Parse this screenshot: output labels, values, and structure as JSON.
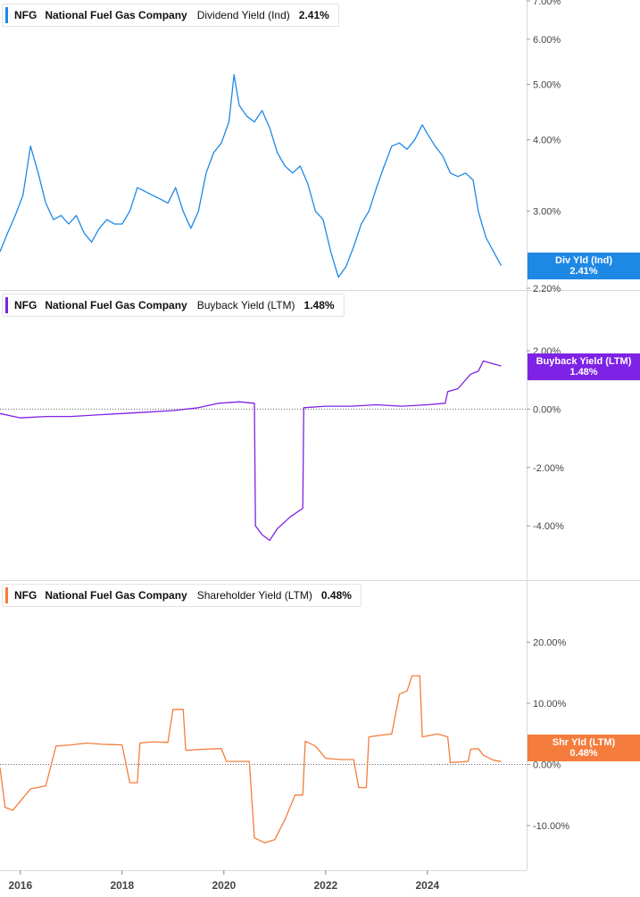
{
  "chart_data": [
    {
      "type": "line",
      "ticker": "NFG",
      "company": "National Fuel Gas Company",
      "metric": "Dividend Yield (Ind)",
      "current_value": "2.41%",
      "tag_label": "Div Yld (Ind)",
      "color": "#1e88e5",
      "y_axis_scale": "log",
      "y_range": [
        2.2,
        7.0
      ],
      "y_ticks": [
        {
          "v": 7.0,
          "label": "7.00%"
        },
        {
          "v": 6.0,
          "label": "6.00%"
        },
        {
          "v": 5.0,
          "label": "5.00%"
        },
        {
          "v": 4.0,
          "label": "4.00%"
        },
        {
          "v": 3.0,
          "label": "3.00%"
        },
        {
          "v": 2.2,
          "label": "2.20%"
        }
      ],
      "zero_line": false,
      "series": [
        {
          "points": [
            [
              2015.6,
              2.55
            ],
            [
              2015.75,
              2.75
            ],
            [
              2015.9,
              2.95
            ],
            [
              2016.05,
              3.2
            ],
            [
              2016.2,
              3.9
            ],
            [
              2016.35,
              3.5
            ],
            [
              2016.5,
              3.1
            ],
            [
              2016.65,
              2.9
            ],
            [
              2016.8,
              2.95
            ],
            [
              2016.95,
              2.85
            ],
            [
              2017.1,
              2.95
            ],
            [
              2017.25,
              2.75
            ],
            [
              2017.4,
              2.65
            ],
            [
              2017.55,
              2.8
            ],
            [
              2017.7,
              2.9
            ],
            [
              2017.85,
              2.85
            ],
            [
              2018.0,
              2.85
            ],
            [
              2018.15,
              3.0
            ],
            [
              2018.3,
              3.3
            ],
            [
              2018.45,
              3.25
            ],
            [
              2018.6,
              3.2
            ],
            [
              2018.75,
              3.15
            ],
            [
              2018.9,
              3.1
            ],
            [
              2019.05,
              3.3
            ],
            [
              2019.2,
              3.0
            ],
            [
              2019.35,
              2.8
            ],
            [
              2019.5,
              3.0
            ],
            [
              2019.65,
              3.5
            ],
            [
              2019.8,
              3.8
            ],
            [
              2019.95,
              3.95
            ],
            [
              2020.1,
              4.3
            ],
            [
              2020.2,
              5.2
            ],
            [
              2020.3,
              4.6
            ],
            [
              2020.45,
              4.4
            ],
            [
              2020.6,
              4.3
            ],
            [
              2020.75,
              4.5
            ],
            [
              2020.9,
              4.2
            ],
            [
              2021.05,
              3.8
            ],
            [
              2021.2,
              3.6
            ],
            [
              2021.35,
              3.5
            ],
            [
              2021.5,
              3.6
            ],
            [
              2021.65,
              3.35
            ],
            [
              2021.8,
              3.0
            ],
            [
              2021.95,
              2.9
            ],
            [
              2022.1,
              2.55
            ],
            [
              2022.25,
              2.3
            ],
            [
              2022.4,
              2.4
            ],
            [
              2022.55,
              2.6
            ],
            [
              2022.7,
              2.85
            ],
            [
              2022.85,
              3.0
            ],
            [
              2023.0,
              3.3
            ],
            [
              2023.15,
              3.6
            ],
            [
              2023.3,
              3.9
            ],
            [
              2023.45,
              3.95
            ],
            [
              2023.6,
              3.85
            ],
            [
              2023.75,
              4.0
            ],
            [
              2023.9,
              4.25
            ],
            [
              2024.0,
              4.1
            ],
            [
              2024.15,
              3.9
            ],
            [
              2024.3,
              3.75
            ],
            [
              2024.45,
              3.5
            ],
            [
              2024.6,
              3.45
            ],
            [
              2024.75,
              3.5
            ],
            [
              2024.9,
              3.4
            ],
            [
              2025.0,
              3.0
            ],
            [
              2025.15,
              2.7
            ],
            [
              2025.3,
              2.55
            ],
            [
              2025.45,
              2.41
            ]
          ]
        }
      ]
    },
    {
      "type": "line",
      "ticker": "NFG",
      "company": "National Fuel Gas Company",
      "metric": "Buyback Yield (LTM)",
      "current_value": "1.48%",
      "tag_label": "Buyback Yield (LTM)",
      "color": "#7e22e6",
      "y_axis_scale": "linear",
      "y_range": [
        -5.8,
        2.0
      ],
      "y_ticks": [
        {
          "v": 2.0,
          "label": "2.00%"
        },
        {
          "v": 0.0,
          "label": "0.00%"
        },
        {
          "v": -2.0,
          "label": "-2.00%"
        },
        {
          "v": -4.0,
          "label": "-4.00%"
        }
      ],
      "zero_line": true,
      "series": [
        {
          "points": [
            [
              2015.6,
              -0.15
            ],
            [
              2016.0,
              -0.3
            ],
            [
              2016.5,
              -0.25
            ],
            [
              2017.0,
              -0.25
            ],
            [
              2017.5,
              -0.2
            ],
            [
              2018.0,
              -0.15
            ],
            [
              2018.5,
              -0.1
            ],
            [
              2019.0,
              -0.05
            ],
            [
              2019.5,
              0.05
            ],
            [
              2019.9,
              0.2
            ],
            [
              2020.3,
              0.25
            ],
            [
              2020.6,
              0.2
            ],
            [
              2020.62,
              -4.0
            ],
            [
              2020.75,
              -4.3
            ],
            [
              2020.9,
              -4.5
            ],
            [
              2021.05,
              -4.1
            ],
            [
              2021.3,
              -3.7
            ],
            [
              2021.55,
              -3.4
            ],
            [
              2021.57,
              0.05
            ],
            [
              2022.0,
              0.1
            ],
            [
              2022.5,
              0.1
            ],
            [
              2023.0,
              0.15
            ],
            [
              2023.5,
              0.1
            ],
            [
              2024.0,
              0.15
            ],
            [
              2024.35,
              0.2
            ],
            [
              2024.4,
              0.6
            ],
            [
              2024.6,
              0.7
            ],
            [
              2024.85,
              1.2
            ],
            [
              2025.0,
              1.3
            ],
            [
              2025.1,
              1.65
            ],
            [
              2025.3,
              1.55
            ],
            [
              2025.45,
              1.48
            ]
          ]
        }
      ]
    },
    {
      "type": "line",
      "ticker": "NFG",
      "company": "National Fuel Gas Company",
      "metric": "Shareholder Yield (LTM)",
      "current_value": "0.48%",
      "tag_label": "Shr Yld (LTM)",
      "color": "#f47c3c",
      "y_axis_scale": "linear",
      "y_range": [
        -17.0,
        24.0
      ],
      "y_ticks": [
        {
          "v": 20.0,
          "label": "20.00%"
        },
        {
          "v": 10.0,
          "label": "10.00%"
        },
        {
          "v": 0.0,
          "label": "0.00%"
        },
        {
          "v": -10.0,
          "label": "-10.00%"
        }
      ],
      "zero_line": true,
      "series": [
        {
          "points": [
            [
              2015.6,
              -0.5
            ],
            [
              2015.7,
              -7.0
            ],
            [
              2015.85,
              -7.5
            ],
            [
              2016.0,
              -6.0
            ],
            [
              2016.2,
              -4.0
            ],
            [
              2016.5,
              -3.5
            ],
            [
              2016.7,
              3.0
            ],
            [
              2017.0,
              3.2
            ],
            [
              2017.3,
              3.5
            ],
            [
              2017.6,
              3.3
            ],
            [
              2018.0,
              3.2
            ],
            [
              2018.15,
              -3.0
            ],
            [
              2018.3,
              -3.0
            ],
            [
              2018.35,
              3.5
            ],
            [
              2018.6,
              3.7
            ],
            [
              2018.9,
              3.6
            ],
            [
              2019.0,
              9.0
            ],
            [
              2019.2,
              9.0
            ],
            [
              2019.25,
              2.3
            ],
            [
              2019.6,
              2.5
            ],
            [
              2019.95,
              2.6
            ],
            [
              2020.05,
              0.5
            ],
            [
              2020.5,
              0.5
            ],
            [
              2020.6,
              -12.0
            ],
            [
              2020.8,
              -12.8
            ],
            [
              2021.0,
              -12.3
            ],
            [
              2021.2,
              -9.0
            ],
            [
              2021.4,
              -5.0
            ],
            [
              2021.55,
              -5.0
            ],
            [
              2021.6,
              3.8
            ],
            [
              2021.8,
              3.0
            ],
            [
              2022.0,
              1.0
            ],
            [
              2022.3,
              0.8
            ],
            [
              2022.55,
              0.8
            ],
            [
              2022.65,
              -3.8
            ],
            [
              2022.8,
              -3.8
            ],
            [
              2022.85,
              4.5
            ],
            [
              2023.1,
              4.8
            ],
            [
              2023.3,
              5.0
            ],
            [
              2023.45,
              11.5
            ],
            [
              2023.6,
              12.0
            ],
            [
              2023.7,
              14.5
            ],
            [
              2023.85,
              14.5
            ],
            [
              2023.9,
              4.5
            ],
            [
              2024.2,
              5.0
            ],
            [
              2024.4,
              4.5
            ],
            [
              2024.45,
              0.3
            ],
            [
              2024.8,
              0.5
            ],
            [
              2024.85,
              2.5
            ],
            [
              2025.0,
              2.6
            ],
            [
              2025.1,
              1.5
            ],
            [
              2025.3,
              0.7
            ],
            [
              2025.45,
              0.48
            ]
          ]
        }
      ]
    }
  ],
  "x_axis": {
    "range": [
      2015.6,
      2025.95
    ],
    "ticks": [
      {
        "v": 2016,
        "label": "2016"
      },
      {
        "v": 2018,
        "label": "2018"
      },
      {
        "v": 2020,
        "label": "2020"
      },
      {
        "v": 2022,
        "label": "2022"
      },
      {
        "v": 2024,
        "label": "2024"
      }
    ]
  },
  "colors": {
    "grid": "#d9d9d9",
    "axis_text": "#444444",
    "dotted_zero": "#666666"
  }
}
